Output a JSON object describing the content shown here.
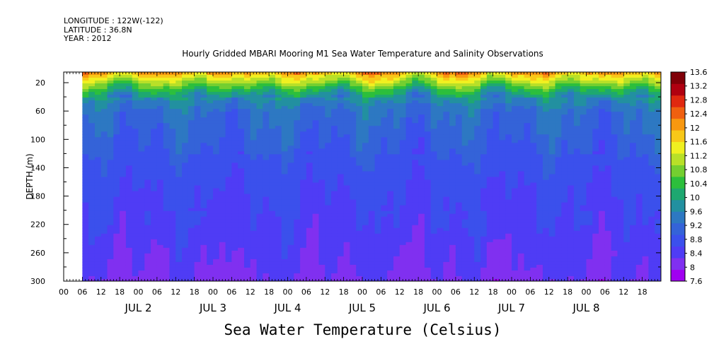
{
  "meta": {
    "longitude": "LONGITUDE : 122W(-122)",
    "latitude": "LATITUDE : 36.8N",
    "year": "YEAR : 2012"
  },
  "chart_data": {
    "type": "heatmap",
    "title": "Hourly Gridded MBARI Mooring M1 Sea Water Temperature and Salinity Observations",
    "xlabel": "Sea Water Temperature (Celsius)",
    "ylabel": "DEPTH (m)",
    "ylim": [
      300,
      5
    ],
    "y_ticks": [
      20,
      60,
      100,
      140,
      180,
      220,
      260,
      300
    ],
    "x_ticks_hours": [
      "00",
      "06",
      "12",
      "18",
      "00",
      "06",
      "12",
      "18",
      "00",
      "06",
      "12",
      "18",
      "00",
      "06",
      "12",
      "18",
      "00",
      "06",
      "12",
      "18",
      "00",
      "06",
      "12",
      "18",
      "00",
      "06",
      "12",
      "18",
      "00",
      "06",
      "12",
      "18"
    ],
    "x_day_labels": [
      "JUL  2",
      "JUL  3",
      "JUL  4",
      "JUL  5",
      "JUL  6",
      "JUL  7",
      "JUL  8"
    ],
    "data_start": "JUL 1 06:00",
    "data_end": "JUL 8 ~23:00",
    "colorbar": {
      "levels": [
        7.6,
        8,
        8.4,
        8.8,
        9.2,
        9.6,
        10,
        10.4,
        10.8,
        11.2,
        11.6,
        12,
        12.4,
        12.8,
        13.2,
        13.6
      ],
      "labels": [
        "13.6",
        "13.2",
        "12.8",
        "12.4",
        "12",
        "11.6",
        "11.2",
        "10.8",
        "10.4",
        "10",
        "9.6",
        "9.2",
        "8.8",
        "8.4",
        "8",
        "7.6"
      ],
      "colors": [
        "#a000f0",
        "#8030f0",
        "#4f3cf5",
        "#3b50ec",
        "#3463d8",
        "#2d78c2",
        "#2290a0",
        "#1ea870",
        "#2cbf3c",
        "#74cf30",
        "#b8e028",
        "#f0f020",
        "#f8c818",
        "#f89810",
        "#f06010",
        "#e02810",
        "#b00010",
        "#800008"
      ]
    },
    "depth_profile": [
      {
        "depth": 5,
        "temperature": 12.6
      },
      {
        "depth": 10,
        "temperature": 12.0
      },
      {
        "depth": 20,
        "temperature": 11.2
      },
      {
        "depth": 30,
        "temperature": 10.4
      },
      {
        "depth": 40,
        "temperature": 9.8
      },
      {
        "depth": 60,
        "temperature": 9.2
      },
      {
        "depth": 100,
        "temperature": 8.9
      },
      {
        "depth": 140,
        "temperature": 8.6
      },
      {
        "depth": 180,
        "temperature": 8.4
      },
      {
        "depth": 220,
        "temperature": 8.3
      },
      {
        "depth": 260,
        "temperature": 8.1
      },
      {
        "depth": 300,
        "temperature": 7.9
      }
    ],
    "grid": false
  }
}
